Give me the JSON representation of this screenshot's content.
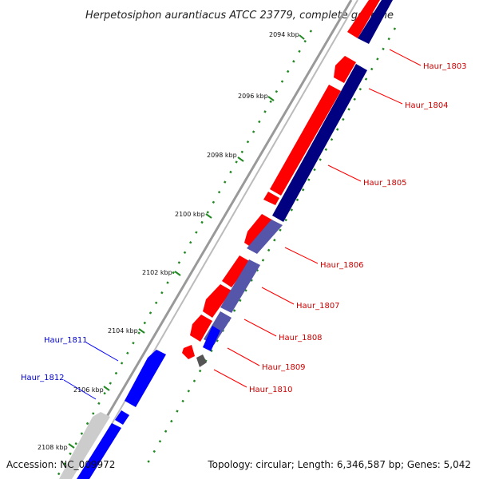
{
  "map": {
    "title": "Herpetosiphon aurantiacus ATCC 23779, complete genome",
    "accession": "Accession: NC_009972",
    "topology": "Topology: circular; Length: 6,346,587 bp; Genes: 5,042"
  },
  "ticks": [
    {
      "pos_kbp": 2094,
      "label": "2094 kbp"
    },
    {
      "pos_kbp": 2096,
      "label": "2096 kbp"
    },
    {
      "pos_kbp": 2098,
      "label": "2098 kbp"
    },
    {
      "pos_kbp": 2100,
      "label": "2100 kbp"
    },
    {
      "pos_kbp": 2102,
      "label": "2102 kbp"
    },
    {
      "pos_kbp": 2104,
      "label": "2104 kbp"
    },
    {
      "pos_kbp": 2106,
      "label": "2106 kbp"
    },
    {
      "pos_kbp": 2108,
      "label": "2108 kbp"
    }
  ],
  "genes": [
    {
      "name": "Haur_1803",
      "strand": "forward",
      "color": "#cc0000",
      "label_side": "right"
    },
    {
      "name": "Haur_1804",
      "strand": "forward",
      "color": "#cc0000",
      "label_side": "right"
    },
    {
      "name": "Haur_1805",
      "strand": "forward",
      "color": "#cc0000",
      "label_side": "right"
    },
    {
      "name": "Haur_1806",
      "strand": "forward",
      "color": "#cc0000",
      "label_side": "right"
    },
    {
      "name": "Haur_1807",
      "strand": "forward",
      "color": "#cc0000",
      "label_side": "right"
    },
    {
      "name": "Haur_1808",
      "strand": "forward",
      "color": "#cc0000",
      "label_side": "right"
    },
    {
      "name": "Haur_1809",
      "strand": "forward",
      "color": "#cc0000",
      "label_side": "right"
    },
    {
      "name": "Haur_1810",
      "strand": "forward",
      "color": "#cc0000",
      "label_side": "right"
    },
    {
      "name": "Haur_1811",
      "strand": "reverse",
      "color": "#0000cc",
      "label_side": "left"
    },
    {
      "name": "Haur_1812",
      "strand": "reverse",
      "color": "#0000cc",
      "label_side": "left"
    }
  ],
  "colors": {
    "forward_cds": "#ff0000",
    "reverse_cds": "#0000ff",
    "navy_track": "#000080",
    "slate_track": "#5555aa",
    "backbone": "#888888",
    "tick_dots": "#228822"
  }
}
